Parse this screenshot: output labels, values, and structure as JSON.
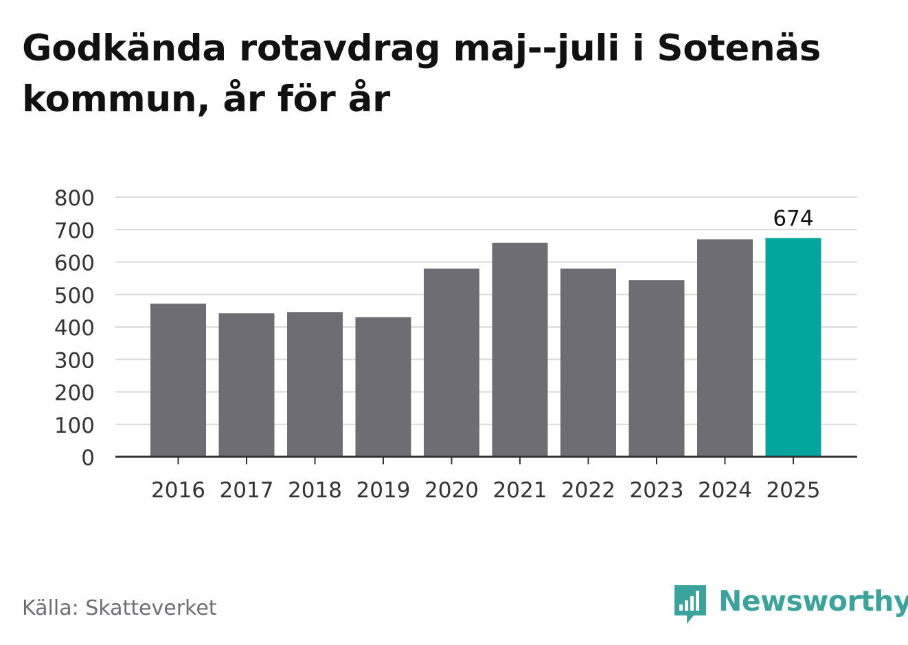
{
  "title": "Godkända rotavdrag maj--juli i Sotenäs kommun, år för år",
  "source": "Källa: Skatteverket",
  "brand": {
    "name": "Newsworthy",
    "icon": "newsworthy-logo-icon",
    "color": "#3aa39b"
  },
  "colors": {
    "bar": "#6e6d73",
    "highlight": "#00a59b",
    "grid": "#d9d9d9",
    "axis": "#333333",
    "tick_text": "#333333",
    "label_text": "#111111"
  },
  "chart_data": {
    "type": "bar",
    "title": "Godkända rotavdrag maj--juli i Sotenäs kommun, år för år",
    "xlabel": "",
    "ylabel": "",
    "categories": [
      "2016",
      "2017",
      "2018",
      "2019",
      "2020",
      "2021",
      "2022",
      "2023",
      "2024",
      "2025"
    ],
    "values": [
      472,
      442,
      446,
      430,
      580,
      659,
      580,
      544,
      670,
      674
    ],
    "highlight_index": 9,
    "data_labels": [
      {
        "index": 9,
        "text": "674"
      }
    ],
    "ylim": [
      0,
      800
    ],
    "yticks": [
      0,
      100,
      200,
      300,
      400,
      500,
      600,
      700,
      800
    ],
    "grid": true,
    "legend": "none"
  }
}
